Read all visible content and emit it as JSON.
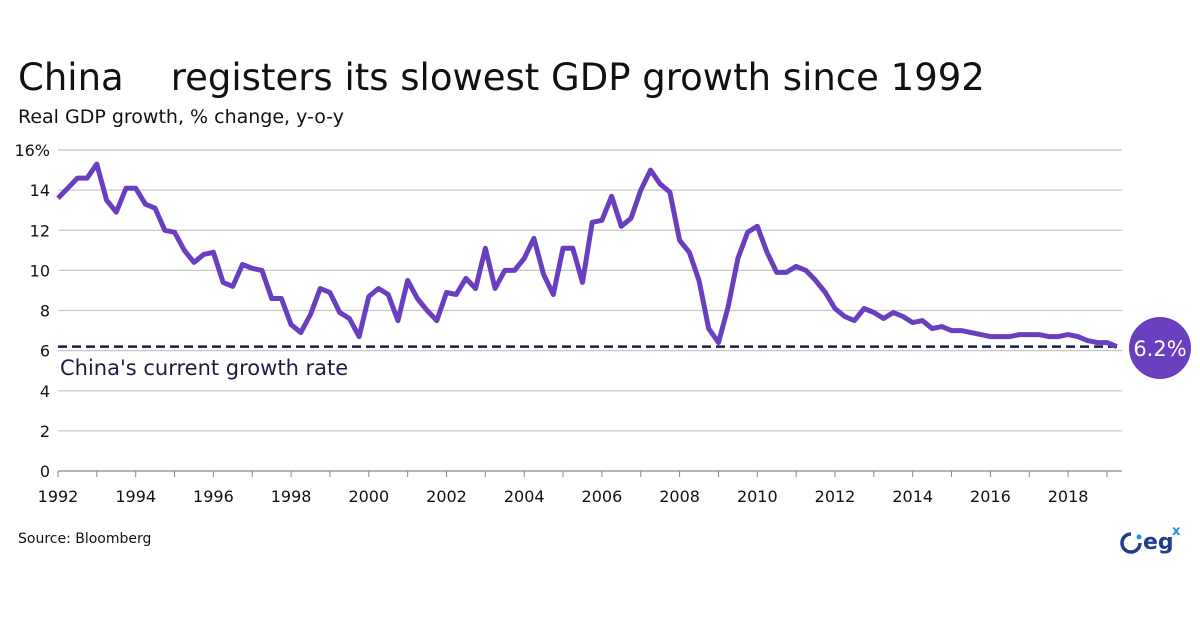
{
  "chart_data": {
    "type": "line",
    "title": "China    registers its slowest GDP growth since 1992",
    "subtitle": "Real GDP growth, % change, y-o-y",
    "source": "Source: Bloomberg",
    "xlabel": "",
    "ylabel": "",
    "ylim": [
      0,
      16
    ],
    "xlim": [
      1992,
      2019.4
    ],
    "grid": true,
    "y_ticks": [
      "0",
      "2",
      "4",
      "6",
      "8",
      "10",
      "12",
      "14",
      "16%"
    ],
    "x_ticks": [
      "1992",
      "1994",
      "1996",
      "1998",
      "2000",
      "2002",
      "2004",
      "2006",
      "2008",
      "2010",
      "2012",
      "2014",
      "2016",
      "2018"
    ],
    "frequency": "quarterly",
    "start": "1992 Q1",
    "series": [
      {
        "values": [
          13.6,
          14.1,
          14.6,
          14.6,
          15.3,
          13.5,
          12.9,
          14.1,
          14.1,
          13.3,
          13.1,
          12.0,
          11.9,
          11.0,
          10.4,
          10.8,
          10.9,
          9.4,
          9.2,
          10.3,
          10.1,
          10.0,
          8.6,
          8.6,
          7.3,
          6.9,
          7.8,
          9.1,
          8.9,
          7.9,
          7.6,
          6.7,
          8.7,
          9.1,
          8.8,
          7.5,
          9.5,
          8.6,
          8.0,
          7.5,
          8.9,
          8.8,
          9.6,
          9.1,
          11.1,
          9.1,
          10.0,
          10.0,
          10.6,
          11.6,
          9.8,
          8.8,
          11.1,
          11.1,
          9.4,
          12.4,
          12.5,
          13.7,
          12.2,
          12.6,
          14.0,
          15.0,
          14.3,
          13.9,
          11.5,
          10.9,
          9.5,
          7.1,
          6.4,
          8.2,
          10.6,
          11.9,
          12.2,
          10.9,
          9.9,
          9.9,
          10.2,
          10.0,
          9.5,
          8.9,
          8.1,
          7.7,
          7.5,
          8.1,
          7.9,
          7.6,
          7.9,
          7.7,
          7.4,
          7.5,
          7.1,
          7.2,
          7.0,
          7.0,
          6.9,
          6.8,
          6.7,
          6.7,
          6.7,
          6.8,
          6.8,
          6.8,
          6.7,
          6.7,
          6.8,
          6.7,
          6.5,
          6.4,
          6.4,
          6.2
        ]
      }
    ],
    "reference_line": {
      "value": 6.2,
      "label": "China's current growth rate"
    },
    "callout": "6.2%",
    "colors": {
      "line": "#6a3fbf",
      "reference": "#1c1c44",
      "grid": "#c8c8c8",
      "callout": "#6a3fbf"
    }
  },
  "logo": {
    "text": "eg",
    "superscript": "x"
  }
}
